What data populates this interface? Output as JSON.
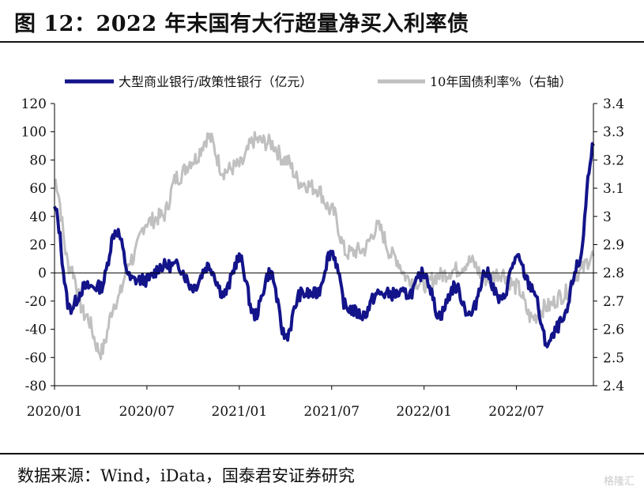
{
  "figure_title": "图 12：2022 年末国有大行超量净买入利率债",
  "source_text": "数据来源：Wind，iData，国泰君安证券研究",
  "watermark": "格隆汇",
  "colors": {
    "left_series": "#13148a",
    "right_series": "#c0c0c0",
    "axis": "#000000",
    "zero_line": "#000000"
  },
  "chart_data": {
    "type": "line",
    "title": "",
    "legend_placement": "top",
    "x_tick_labels": [
      "2020/01",
      "2020/07",
      "2021/01",
      "2021/07",
      "2022/01",
      "2022/07"
    ],
    "x_range": [
      "2020/01",
      "2022/12"
    ],
    "y_left": {
      "ylim": [
        -80,
        120
      ],
      "ticks": [
        120,
        100,
        80,
        60,
        40,
        20,
        0,
        -20,
        -40,
        -60,
        -80
      ]
    },
    "y_right": {
      "ylim": [
        2.4,
        3.4
      ],
      "ticks": [
        "3.4",
        "3.3",
        "3.2",
        "3.1",
        "3",
        "2.9",
        "2.8",
        "2.7",
        "2.6",
        "2.5",
        "2.4"
      ]
    },
    "grid": false,
    "series": [
      {
        "name": "大型商业银行/政策性银行（亿元）",
        "axis": "left",
        "x": [
          "2020/01",
          "2020/02",
          "2020/03",
          "2020/04",
          "2020/05",
          "2020/06",
          "2020/07",
          "2020/08",
          "2020/09",
          "2020/10",
          "2020/11",
          "2020/12",
          "2021/01",
          "2021/02",
          "2021/03",
          "2021/04",
          "2021/05",
          "2021/06",
          "2021/07",
          "2021/08",
          "2021/09",
          "2021/10",
          "2021/11",
          "2021/12",
          "2022/01",
          "2022/02",
          "2022/03",
          "2022/04",
          "2022/05",
          "2022/06",
          "2022/07",
          "2022/08",
          "2022/09",
          "2022/10",
          "2022/11",
          "2022/12"
        ],
        "values": [
          45,
          -25,
          -10,
          -10,
          30,
          -5,
          -5,
          5,
          5,
          -10,
          5,
          -15,
          10,
          -30,
          0,
          -45,
          -15,
          -15,
          15,
          -25,
          -30,
          -15,
          -15,
          -15,
          0,
          -30,
          -10,
          -30,
          0,
          -20,
          10,
          -10,
          -50,
          -35,
          5,
          90
        ]
      },
      {
        "name": "10年国债利率%（右轴）",
        "axis": "right",
        "x": [
          "2020/01",
          "2020/02",
          "2020/03",
          "2020/04",
          "2020/05",
          "2020/06",
          "2020/07",
          "2020/08",
          "2020/09",
          "2020/10",
          "2020/11",
          "2020/12",
          "2021/01",
          "2021/02",
          "2021/03",
          "2021/04",
          "2021/05",
          "2021/06",
          "2021/07",
          "2021/08",
          "2021/09",
          "2021/10",
          "2021/11",
          "2021/12",
          "2022/01",
          "2022/02",
          "2022/03",
          "2022/04",
          "2022/05",
          "2022/06",
          "2022/07",
          "2022/08",
          "2022/09",
          "2022/10",
          "2022/11",
          "2022/12"
        ],
        "values": [
          3.13,
          2.82,
          2.65,
          2.52,
          2.7,
          2.85,
          2.98,
          3.0,
          3.14,
          3.2,
          3.28,
          3.16,
          3.18,
          3.27,
          3.26,
          3.2,
          3.12,
          3.1,
          3.02,
          2.87,
          2.88,
          2.96,
          2.86,
          2.78,
          2.76,
          2.79,
          2.81,
          2.84,
          2.78,
          2.8,
          2.75,
          2.64,
          2.68,
          2.72,
          2.8,
          2.86
        ]
      }
    ]
  }
}
